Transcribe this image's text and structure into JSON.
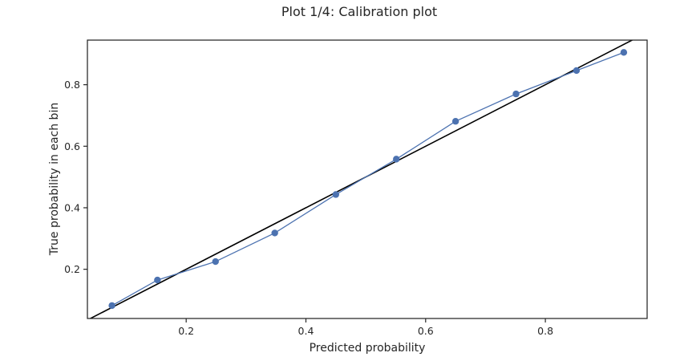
{
  "chart_data": {
    "type": "line",
    "title": "Plot 1/4: Calibration plot",
    "xlabel": "Predicted probability",
    "ylabel": "True probability in each bin",
    "xlim": [
      0.035,
      0.97
    ],
    "ylim": [
      0.04,
      0.945
    ],
    "xticks": [
      0.2,
      0.4,
      0.6,
      0.8
    ],
    "yticks": [
      0.2,
      0.4,
      0.6,
      0.8
    ],
    "xtick_labels": [
      "0.2",
      "0.4",
      "0.6",
      "0.8"
    ],
    "ytick_labels": [
      "0.2",
      "0.4",
      "0.6",
      "0.8"
    ],
    "grid": false,
    "reference_line": {
      "x": [
        0,
        1
      ],
      "y": [
        0,
        1
      ],
      "color": "#000000"
    },
    "series": [
      {
        "color": "#4c72b0",
        "marker": "circle",
        "x": [
          0.076,
          0.152,
          0.249,
          0.348,
          0.45,
          0.551,
          0.65,
          0.751,
          0.852,
          0.931
        ],
        "y": [
          0.082,
          0.165,
          0.225,
          0.318,
          0.443,
          0.558,
          0.681,
          0.77,
          0.846,
          0.905
        ]
      }
    ]
  }
}
